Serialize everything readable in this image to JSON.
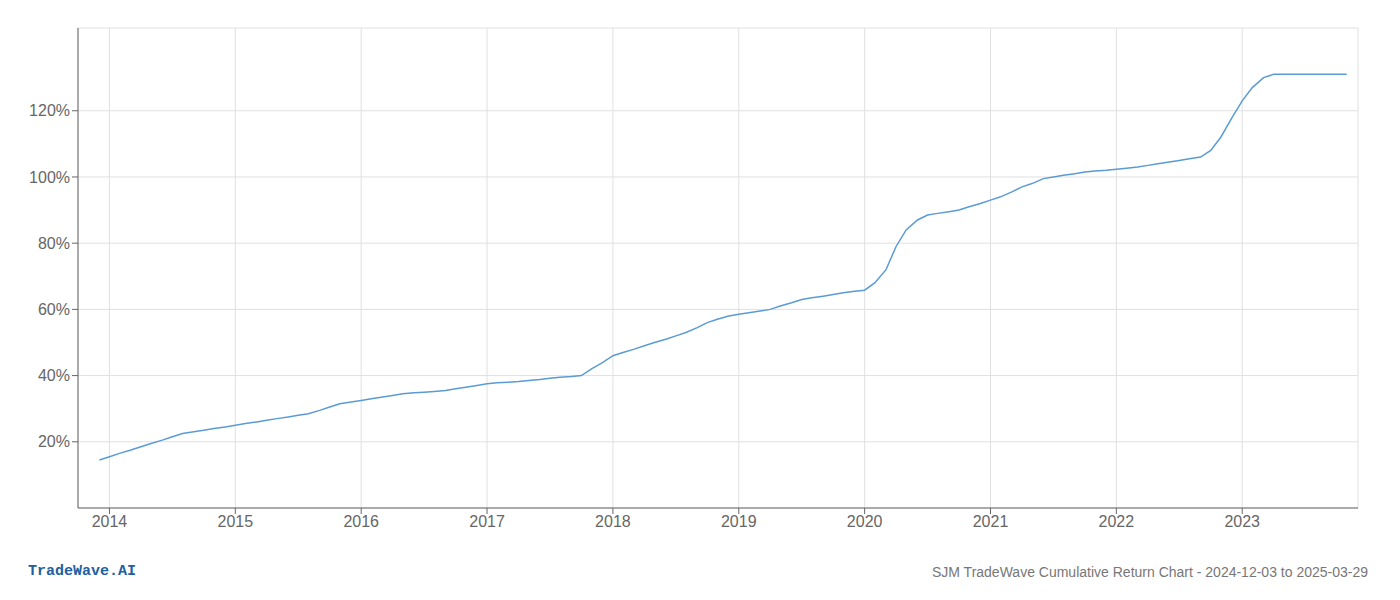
{
  "chart_data": {
    "type": "line",
    "title": "SJM TradeWave Cumulative Return Chart - 2024-12-03 to 2025-03-29",
    "annotations": [
      {
        "text": "TradeWave.AI",
        "color": "#2060a0"
      }
    ],
    "x": [
      2013.92,
      2014.0,
      2014.08,
      2014.17,
      2014.25,
      2014.33,
      2014.42,
      2014.5,
      2014.58,
      2014.67,
      2014.75,
      2014.83,
      2014.92,
      2015.0,
      2015.08,
      2015.17,
      2015.25,
      2015.33,
      2015.42,
      2015.5,
      2015.58,
      2015.67,
      2015.75,
      2015.83,
      2015.92,
      2016.0,
      2016.08,
      2016.17,
      2016.25,
      2016.33,
      2016.42,
      2016.5,
      2016.58,
      2016.67,
      2016.75,
      2016.83,
      2016.92,
      2017.0,
      2017.08,
      2017.17,
      2017.25,
      2017.33,
      2017.42,
      2017.5,
      2017.58,
      2017.67,
      2017.75,
      2017.83,
      2017.92,
      2018.0,
      2018.08,
      2018.17,
      2018.25,
      2018.33,
      2018.42,
      2018.5,
      2018.58,
      2018.67,
      2018.75,
      2018.83,
      2018.92,
      2019.0,
      2019.08,
      2019.17,
      2019.25,
      2019.33,
      2019.42,
      2019.5,
      2019.58,
      2019.67,
      2019.75,
      2019.83,
      2019.92,
      2020.0,
      2020.08,
      2020.17,
      2020.25,
      2020.33,
      2020.42,
      2020.5,
      2020.58,
      2020.67,
      2020.75,
      2020.83,
      2020.92,
      2021.0,
      2021.08,
      2021.17,
      2021.25,
      2021.33,
      2021.42,
      2021.5,
      2021.58,
      2021.67,
      2021.75,
      2021.83,
      2021.92,
      2022.0,
      2022.08,
      2022.17,
      2022.25,
      2022.33,
      2022.42,
      2022.5,
      2022.58,
      2022.67,
      2022.75,
      2022.83,
      2022.92,
      2023.0,
      2023.08,
      2023.17,
      2023.25,
      2023.33,
      2023.42,
      2023.5,
      2023.58,
      2023.67,
      2023.75,
      2023.83
    ],
    "values": [
      14.5,
      15.5,
      16.5,
      17.5,
      18.5,
      19.5,
      20.5,
      21.5,
      22.5,
      23.0,
      23.5,
      24.0,
      24.5,
      25.0,
      25.5,
      26.0,
      26.5,
      27.0,
      27.5,
      28.0,
      28.5,
      29.5,
      30.5,
      31.5,
      32.0,
      32.5,
      33.0,
      33.5,
      34.0,
      34.5,
      34.8,
      35.0,
      35.2,
      35.5,
      36.0,
      36.5,
      37.0,
      37.5,
      37.8,
      38.0,
      38.2,
      38.5,
      38.8,
      39.2,
      39.5,
      39.7,
      40.0,
      42.0,
      44.0,
      46.0,
      47.0,
      48.0,
      49.0,
      50.0,
      51.0,
      52.0,
      53.0,
      54.5,
      56.0,
      57.0,
      58.0,
      58.5,
      59.0,
      59.5,
      60.0,
      61.0,
      62.0,
      63.0,
      63.5,
      64.0,
      64.5,
      65.0,
      65.5,
      65.8,
      68.0,
      72.0,
      79.0,
      84.0,
      87.0,
      88.5,
      89.0,
      89.5,
      90.0,
      91.0,
      92.0,
      93.0,
      94.0,
      95.5,
      97.0,
      98.0,
      99.5,
      100.0,
      100.5,
      101.0,
      101.5,
      101.8,
      102.0,
      102.3,
      102.6,
      103.0,
      103.5,
      104.0,
      104.5,
      105.0,
      105.5,
      106.0,
      108.0,
      112.0,
      118.0,
      123.0,
      127.0,
      130.0,
      131.0,
      131.0,
      131.0,
      131.0,
      131.0,
      131.0,
      131.0,
      131.0
    ],
    "color": "#5b9bd5",
    "xlim": [
      2013.75,
      2023.92
    ],
    "xticks": [
      2014,
      2015,
      2016,
      2017,
      2018,
      2019,
      2020,
      2021,
      2022,
      2023
    ],
    "ylim": [
      0,
      145
    ],
    "yticks": [
      {
        "value": 20,
        "label": "20%"
      },
      {
        "value": 40,
        "label": "40%"
      },
      {
        "value": 60,
        "label": "60%"
      },
      {
        "value": 80,
        "label": "80%"
      },
      {
        "value": 100,
        "label": "100%"
      },
      {
        "value": 120,
        "label": "120%"
      }
    ],
    "grid": true
  }
}
